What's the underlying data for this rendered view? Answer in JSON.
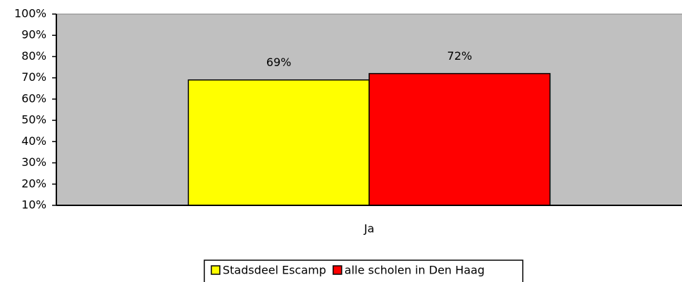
{
  "chart_data": {
    "type": "bar",
    "categories": [
      "Ja"
    ],
    "series": [
      {
        "name": "Stadsdeel Escamp",
        "color": "#ffff00",
        "values": [
          69
        ],
        "value_labels": [
          "69%"
        ]
      },
      {
        "name": "alle scholen in Den Haag",
        "color": "#ff0000",
        "values": [
          72
        ],
        "value_labels": [
          "72%"
        ]
      }
    ],
    "ylim": [
      10,
      100
    ],
    "yticks": [
      {
        "value": 10,
        "label": "10%"
      },
      {
        "value": 20,
        "label": "20%"
      },
      {
        "value": 30,
        "label": "30%"
      },
      {
        "value": 40,
        "label": "40%"
      },
      {
        "value": 50,
        "label": "50%"
      },
      {
        "value": 60,
        "label": "60%"
      },
      {
        "value": 70,
        "label": "70%"
      },
      {
        "value": 80,
        "label": "80%"
      },
      {
        "value": 90,
        "label": "90%"
      },
      {
        "value": 100,
        "label": "100%"
      }
    ],
    "legend": "bottom",
    "plot_background": "#c0c0c0"
  }
}
